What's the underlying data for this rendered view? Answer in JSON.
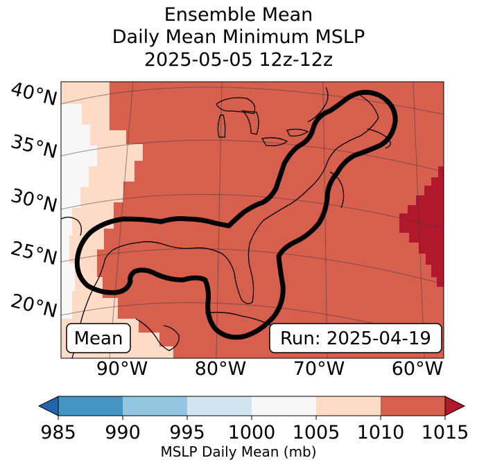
{
  "title": {
    "line1": "Ensemble Mean",
    "line2": "Daily Mean Minimum MSLP",
    "line3": "2025-05-05 12z-12z"
  },
  "map": {
    "lat_labels": [
      "40°N",
      "35°N",
      "30°N",
      "25°N",
      "20°N"
    ],
    "lon_labels": [
      "90°W",
      "80°W",
      "70°W",
      "60°W"
    ],
    "badge_left": "Mean",
    "badge_right": "Run: 2025-04-19"
  },
  "colorbar": {
    "ticks": [
      "985",
      "990",
      "995",
      "1000",
      "1005",
      "1010",
      "1015"
    ],
    "label": "MSLP Daily Mean (mb)",
    "colors": [
      "#2166ac",
      "#4393c3",
      "#92c5de",
      "#d1e5f0",
      "#f7f7f7",
      "#fddbc7",
      "#d6604d",
      "#b2182b"
    ]
  },
  "colors": {
    "land_sea_main": "#d6604d",
    "light": "#fddbc7",
    "lightest": "#f7f7f7",
    "dark": "#b2182b",
    "outline": "#000000"
  }
}
